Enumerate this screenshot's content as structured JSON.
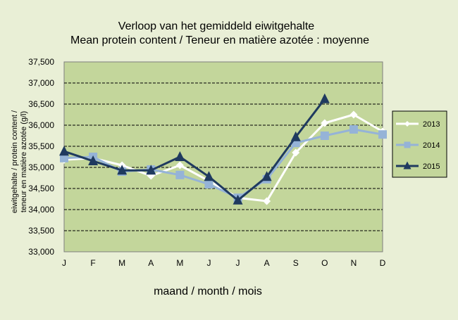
{
  "chart_data": {
    "type": "line",
    "title": "Verloop van het gemiddeld  eiwitgehalte",
    "subtitle": "Mean protein content / Teneur  en matière azotée  : moyenne",
    "xlabel": "maand  / month  / mois",
    "ylabel_line1": "eiwitgehalte  / protein content /",
    "ylabel_line2": "teneur  en matière  azotée  (g/l)",
    "categories": [
      "J",
      "F",
      "M",
      "A",
      "M",
      "J",
      "J",
      "A",
      "S",
      "O",
      "N",
      "D"
    ],
    "ylim": [
      33.0,
      37.5
    ],
    "yticks": [
      "33,000",
      "33,500",
      "34,000",
      "34,500",
      "35,000",
      "35,500",
      "36,000",
      "36,500",
      "37,000",
      "37,500"
    ],
    "legend_position": "right",
    "grid": true,
    "series": [
      {
        "name": "2013",
        "marker": "diamond",
        "color": "#ffffff",
        "values": [
          35.18,
          35.22,
          35.05,
          34.8,
          35.05,
          34.68,
          34.28,
          34.2,
          35.35,
          36.05,
          36.25,
          35.85
        ]
      },
      {
        "name": "2014",
        "marker": "square",
        "color": "#95b3d7",
        "values": [
          35.22,
          35.25,
          34.9,
          34.95,
          34.82,
          34.6,
          34.28,
          34.72,
          35.58,
          35.75,
          35.9,
          35.78
        ]
      },
      {
        "name": "2015",
        "marker": "triangle",
        "color": "#1f3a5f",
        "values": [
          35.38,
          35.15,
          34.93,
          34.93,
          35.25,
          34.78,
          34.22,
          34.78,
          35.72,
          36.62,
          null,
          null
        ]
      }
    ]
  },
  "colors": {
    "plot_bg": "#c3d69b",
    "page_bg": "#e9efd6",
    "grid": "#000000"
  }
}
